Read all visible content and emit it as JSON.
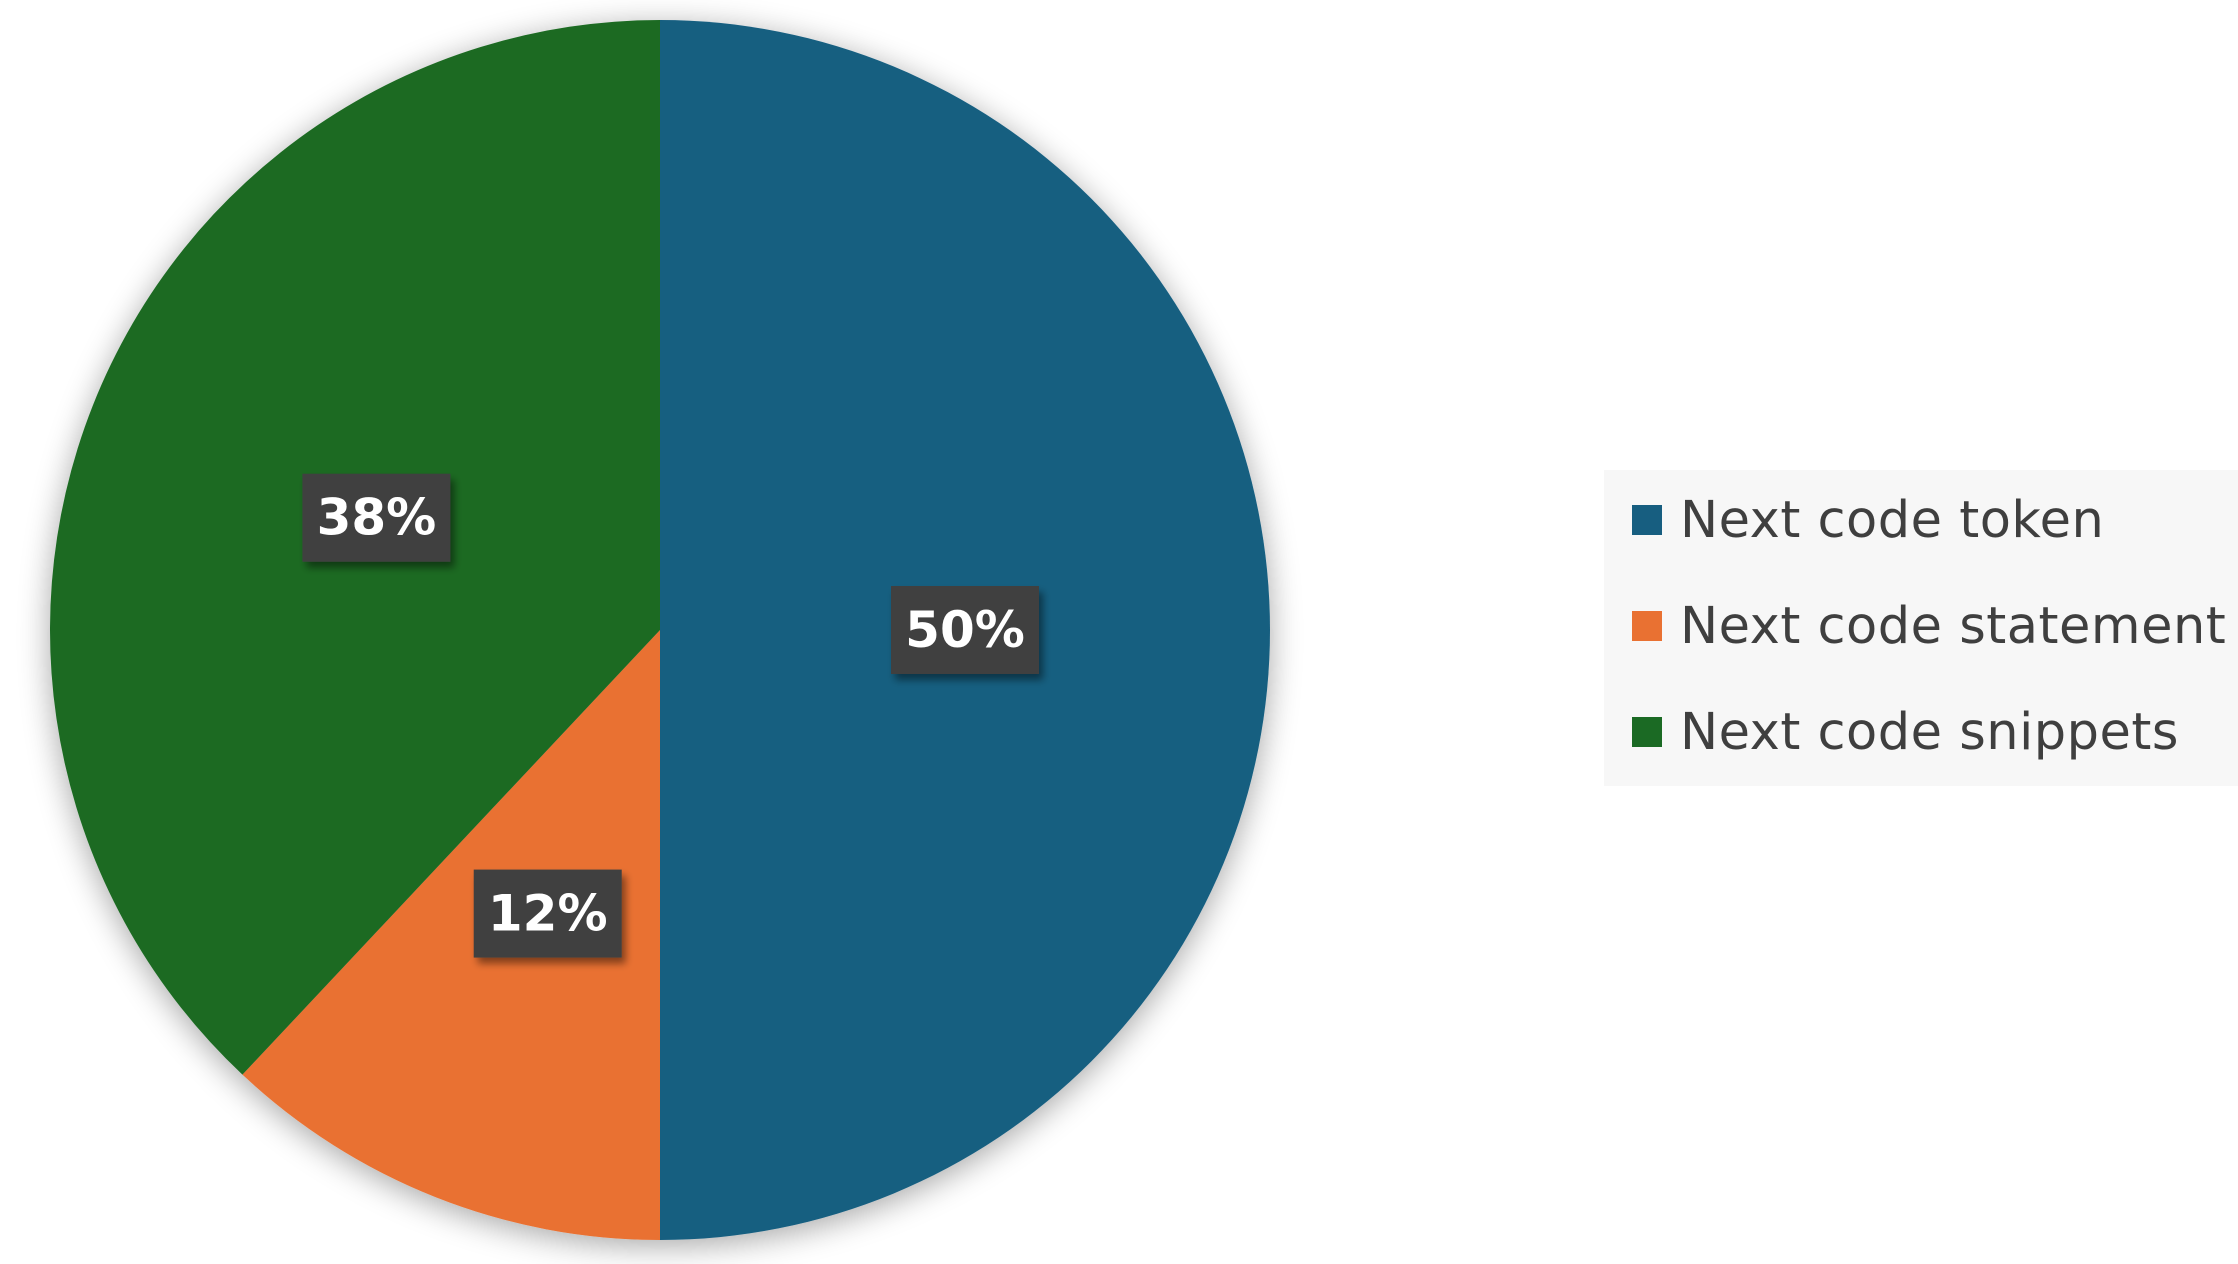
{
  "chart_data": {
    "type": "pie",
    "start_angle_deg": 0,
    "direction": "clockwise",
    "slices": [
      {
        "label": "Next code token",
        "value": 50,
        "value_label": "50%",
        "color": "#175e80"
      },
      {
        "label": "Next code statement",
        "value": 12,
        "value_label": "12%",
        "color": "#e97132"
      },
      {
        "label": "Next code snippets",
        "value": 38,
        "value_label": "38%",
        "color": "#1b6a24"
      }
    ],
    "data_label_background": "#404040",
    "legend_placement": "right",
    "title": ""
  }
}
